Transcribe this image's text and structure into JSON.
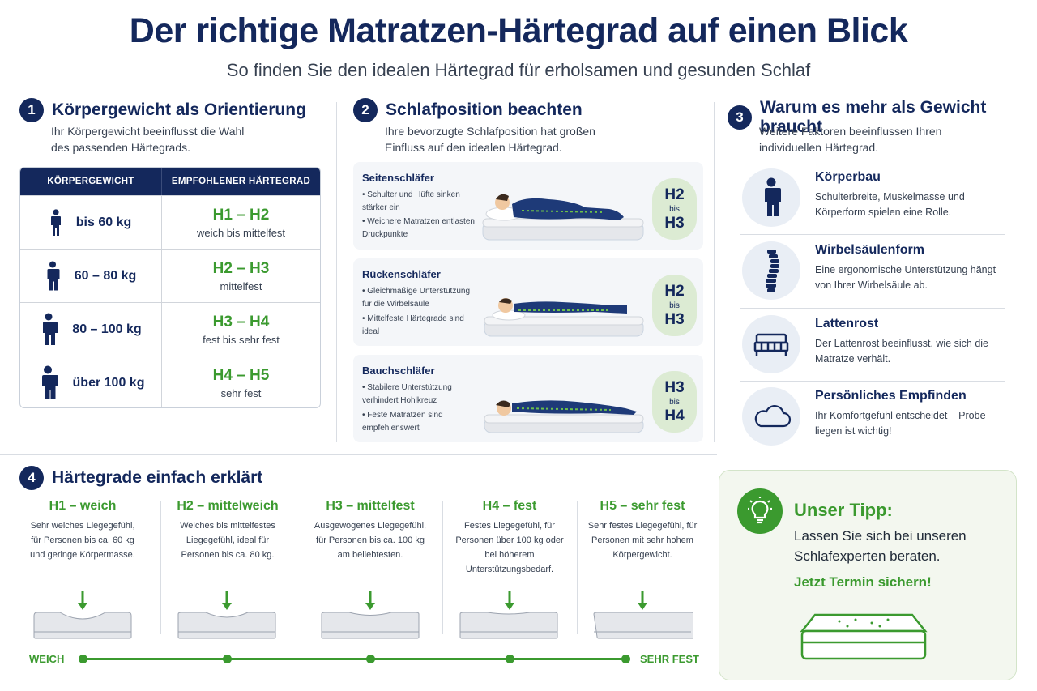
{
  "header": {
    "title": "Der richtige Matratzen-Härtegrad auf einen Blick",
    "subtitle": "So finden Sie den idealen Härtegrad für erholsamen und gesunden Schlaf"
  },
  "section1": {
    "number": "1",
    "title": "Körpergewicht als Orientierung",
    "desc_line1": "Ihr Körpergewicht beeinflusst die Wahl",
    "desc_line2": "des passenden Härtegrads.",
    "table": {
      "col1": "KÖRPERGEWICHT",
      "col2": "EMPFOHLENER HÄRTEGRAD",
      "rows": [
        {
          "weight": "bis 60 kg",
          "grade": "H1 – H2",
          "desc": "weich bis mittelfest"
        },
        {
          "weight": "60 – 80 kg",
          "grade": "H2 – H3",
          "desc": "mittelfest"
        },
        {
          "weight": "80 – 100 kg",
          "grade": "H3 – H4",
          "desc": "fest bis sehr fest"
        },
        {
          "weight": "über 100 kg",
          "grade": "H4 – H5",
          "desc": "sehr fest"
        }
      ]
    }
  },
  "section2": {
    "number": "2",
    "title": "Schlafposition beachten",
    "desc_line1": "Ihre bevorzugte Schlafposition hat großen",
    "desc_line2": "Einfluss auf den idealen Härtegrad.",
    "positions": [
      {
        "title": "Seitenschläfer",
        "b1": "Schulter und Hüfte sinken stärker ein",
        "b2": "Weichere Matratzen entlasten Druckpunkte",
        "from": "H2",
        "bis": "bis",
        "to": "H3"
      },
      {
        "title": "Rückenschläfer",
        "b1": "Gleichmäßige Unterstützung für die Wirbelsäule",
        "b2": "Mittelfeste Härtegrade sind ideal",
        "from": "H2",
        "bis": "bis",
        "to": "H3"
      },
      {
        "title": "Bauchschläfer",
        "b1": "Stabilere Unterstützung verhindert Hohlkreuz",
        "b2": "Feste Matratzen sind empfehlenswert",
        "from": "H3",
        "bis": "bis",
        "to": "H4"
      }
    ]
  },
  "section3": {
    "number": "3",
    "title": "Warum es mehr als Gewicht braucht",
    "desc_line1": "Weitere Faktoren beeinflussen Ihren",
    "desc_line2": "individuellen Härtegrad.",
    "factors": [
      {
        "title": "Körperbau",
        "desc": "Schulterbreite, Muskelmasse und Körperform spielen eine Rolle.",
        "icon": "person-icon"
      },
      {
        "title": "Wirbelsäulenform",
        "desc": "Eine ergonomische Unterstützung hängt von Ihrer Wirbelsäule ab.",
        "icon": "spine-icon"
      },
      {
        "title": "Lattenrost",
        "desc": "Der Lattenrost beeinflusst, wie sich die Matratze verhält.",
        "icon": "bed-icon"
      },
      {
        "title": "Persönliches Empfinden",
        "desc": "Ihr Komfortgefühl entscheidet – Probe liegen ist wichtig!",
        "icon": "cloud-icon"
      }
    ]
  },
  "section4": {
    "number": "4",
    "title": "Härtegrade einfach erklärt",
    "grades": [
      {
        "title": "H1 – weich",
        "desc": "Sehr weiches Liegegefühl, für Personen bis ca. 60 kg und geringe Körpermasse."
      },
      {
        "title": "H2 – mittelweich",
        "desc": "Weiches bis mittelfestes Liegegefühl, ideal für Personen bis ca. 80 kg."
      },
      {
        "title": "H3 – mittelfest",
        "desc": "Ausgewogenes Liegegefühl, für Personen bis ca. 100 kg am beliebtesten."
      },
      {
        "title": "H4 – fest",
        "desc": "Festes Liegegefühl, für Personen über 100 kg oder bei höherem Unterstützungsbedarf."
      },
      {
        "title": "H5 – sehr fest",
        "desc": "Sehr festes Liegegefühl, für Personen mit sehr hohem Körpergewicht."
      }
    ],
    "scale_left": "WEICH",
    "scale_right": "SEHR FEST"
  },
  "tip": {
    "title": "Unser Tipp:",
    "text": "Lassen Sie sich bei unseren Schlafexperten beraten.",
    "cta": "Jetzt Termin sichern!",
    "icon": "lightbulb-icon"
  },
  "colors": {
    "navy": "#14285c",
    "green": "#3b9a2f",
    "badge_bg": "#dcebd3",
    "tip_bg": "#f3f7ef"
  }
}
